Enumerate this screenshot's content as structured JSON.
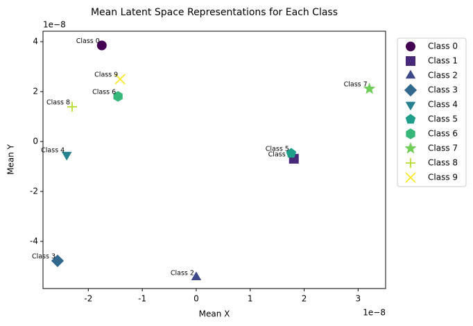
{
  "chart_data": {
    "type": "scatter",
    "title": "Mean Latent Space Representations for Each Class",
    "x_label": "Mean X",
    "y_label": "Mean Y",
    "x_offset_label": "1e−8",
    "y_offset_label": "1e−8",
    "xlim": [
      -2.84,
      3.51
    ],
    "ylim": [
      -5.89,
      4.42
    ],
    "xticks": [
      -2,
      -1,
      0,
      1,
      2,
      3
    ],
    "yticks": [
      -4,
      -2,
      0,
      2,
      4
    ],
    "legend": "outside-upper-right",
    "series": [
      {
        "name": "Class 0",
        "color": "#440154",
        "marker": "circle",
        "x": [
          -1.75
        ],
        "values": [
          3.85
        ]
      },
      {
        "name": "Class 1",
        "color": "#482878",
        "marker": "square",
        "x": [
          1.81
        ],
        "values": [
          -0.69
        ]
      },
      {
        "name": "Class 2",
        "color": "#3e4989",
        "marker": "triangle-up",
        "x": [
          0.0
        ],
        "values": [
          -5.44
        ]
      },
      {
        "name": "Class 3",
        "color": "#31688e",
        "marker": "diamond",
        "x": [
          -2.57
        ],
        "values": [
          -4.78
        ]
      },
      {
        "name": "Class 4",
        "color": "#26828e",
        "marker": "triangle-down",
        "x": [
          -2.4
        ],
        "values": [
          -0.53
        ]
      },
      {
        "name": "Class 5",
        "color": "#1f9e89",
        "marker": "pentagon",
        "x": [
          1.76
        ],
        "values": [
          -0.47
        ]
      },
      {
        "name": "Class 6",
        "color": "#35b779",
        "marker": "hexagon",
        "x": [
          -1.45
        ],
        "values": [
          1.81
        ]
      },
      {
        "name": "Class 7",
        "color": "#6ece58",
        "marker": "star",
        "x": [
          3.21
        ],
        "values": [
          2.11
        ]
      },
      {
        "name": "Class 8",
        "color": "#b5de2b",
        "marker": "plus",
        "x": [
          -2.3
        ],
        "values": [
          1.39
        ]
      },
      {
        "name": "Class 9",
        "color": "#fde725",
        "marker": "x",
        "x": [
          -1.41
        ],
        "values": [
          2.5
        ]
      }
    ]
  }
}
